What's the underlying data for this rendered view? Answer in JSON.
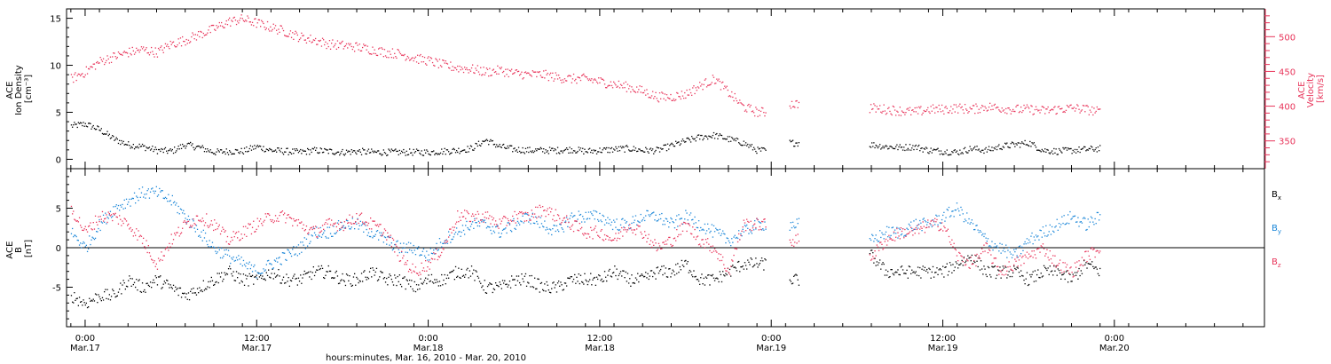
{
  "colors": {
    "axis": "#000000",
    "density": "#000000",
    "velocity": "#e8345a",
    "bx": "#000000",
    "by": "#1a86d8",
    "bz": "#e8345a"
  },
  "x_axis": {
    "title": "hours:minutes, Mar. 16, 2010 - Mar. 20, 2010",
    "range_hours": [
      -1.3,
      82.5
    ],
    "ticks": [
      {
        "hour": 0,
        "time": "0:00",
        "date": "Mar.17"
      },
      {
        "hour": 12,
        "time": "12:00",
        "date": "Mar.17"
      },
      {
        "hour": 24,
        "time": "0:00",
        "date": "Mar.18"
      },
      {
        "hour": 36,
        "time": "12:00",
        "date": "Mar.18"
      },
      {
        "hour": 48,
        "time": "0:00",
        "date": "Mar.19"
      },
      {
        "hour": 60,
        "time": "12:00",
        "date": "Mar.19"
      },
      {
        "hour": 72,
        "time": "0:00",
        "date": "Mar.20"
      }
    ]
  },
  "chart_data": [
    {
      "type": "scatter",
      "panel": "top",
      "left_axis": {
        "label_lines": [
          "ACE",
          "Ion Density",
          "[cm⁻³]"
        ],
        "ylim": [
          -1,
          16
        ],
        "ticks": [
          0,
          5,
          10,
          15
        ]
      },
      "right_axis": {
        "label_lines": [
          "ACE",
          "Velocity",
          "[km/s]"
        ],
        "ylim": [
          310,
          540
        ],
        "ticks": [
          350,
          400,
          450,
          500
        ]
      },
      "data_gaps_hours": [
        [
          47.6,
          49.2
        ],
        [
          49.9,
          54.8
        ]
      ],
      "series": [
        {
          "axis": "left",
          "x": [
            -1,
            0,
            1,
            2,
            3,
            4,
            5,
            6,
            7,
            8,
            9,
            10,
            11,
            12,
            13,
            14,
            15,
            16,
            17,
            18,
            19,
            20,
            21,
            22,
            23,
            24,
            25,
            26,
            27,
            28,
            29,
            30,
            31,
            32,
            33,
            34,
            35,
            36,
            37,
            38,
            39,
            40,
            41,
            42,
            43,
            44,
            45,
            46,
            47,
            48,
            49,
            50,
            51,
            52,
            53,
            54,
            55,
            56,
            57,
            58,
            59,
            60,
            61,
            62,
            63,
            64,
            65,
            66,
            67,
            68,
            69,
            70,
            71
          ],
          "y": [
            3.6,
            3.8,
            3.2,
            2.2,
            1.6,
            1.4,
            1.0,
            0.9,
            1.6,
            1.3,
            0.8,
            0.9,
            0.9,
            1.4,
            1.0,
            0.9,
            0.8,
            1.0,
            0.9,
            0.8,
            0.9,
            0.8,
            0.8,
            0.8,
            0.8,
            0.8,
            0.9,
            1.0,
            1.2,
            2.1,
            1.4,
            1.1,
            1.0,
            1.0,
            1.0,
            1.1,
            0.9,
            1.0,
            1.1,
            1.2,
            1.0,
            1.0,
            1.5,
            2.0,
            2.4,
            2.6,
            2.2,
            1.8,
            1.0,
            null,
            1.8,
            null,
            null,
            null,
            null,
            null,
            1.6,
            1.4,
            1.3,
            1.4,
            1.0,
            0.9,
            0.8,
            1.2,
            1.0,
            1.4,
            1.6,
            1.8,
            1.0,
            0.9,
            1.0,
            1.1,
            1.2
          ]
        },
        {
          "axis": "right",
          "x": [
            -1,
            0,
            1,
            2,
            3,
            4,
            5,
            6,
            7,
            8,
            9,
            10,
            11,
            12,
            13,
            14,
            15,
            16,
            17,
            18,
            19,
            20,
            21,
            22,
            23,
            24,
            25,
            26,
            27,
            28,
            29,
            30,
            31,
            32,
            33,
            34,
            35,
            36,
            37,
            38,
            39,
            40,
            41,
            42,
            43,
            44,
            45,
            46,
            47,
            48,
            49,
            50,
            51,
            52,
            53,
            54,
            55,
            56,
            57,
            58,
            59,
            60,
            61,
            62,
            63,
            64,
            65,
            66,
            67,
            68,
            69,
            70,
            71
          ],
          "y": [
            440,
            450,
            465,
            472,
            478,
            482,
            478,
            490,
            496,
            504,
            512,
            522,
            526,
            520,
            514,
            508,
            500,
            496,
            490,
            488,
            486,
            482,
            478,
            476,
            470,
            466,
            460,
            456,
            454,
            450,
            452,
            448,
            446,
            446,
            442,
            440,
            440,
            436,
            432,
            428,
            422,
            414,
            414,
            418,
            430,
            440,
            420,
            400,
            392,
            null,
            404,
            null,
            null,
            null,
            null,
            null,
            398,
            396,
            394,
            392,
            396,
            396,
            398,
            396,
            400,
            398,
            396,
            396,
            394,
            396,
            398,
            396,
            392
          ]
        }
      ]
    },
    {
      "type": "scatter",
      "panel": "bottom",
      "left_axis": {
        "label_lines": [
          "ACE",
          "B",
          "[nT]"
        ],
        "ylim": [
          -10,
          10
        ],
        "ticks": [
          -5,
          0,
          5
        ]
      },
      "zero_line": 0,
      "data_gaps_hours": [
        [
          47.6,
          49.2
        ],
        [
          49.9,
          54.8
        ]
      ],
      "series": [
        {
          "name": "Bx",
          "x": [
            -1,
            0,
            1,
            2,
            3,
            4,
            5,
            6,
            7,
            8,
            9,
            10,
            11,
            12,
            13,
            14,
            15,
            16,
            17,
            18,
            19,
            20,
            21,
            22,
            23,
            24,
            25,
            26,
            27,
            28,
            29,
            30,
            31,
            32,
            33,
            34,
            35,
            36,
            37,
            38,
            39,
            40,
            41,
            42,
            43,
            44,
            45,
            46,
            47,
            48,
            49,
            50,
            51,
            52,
            53,
            54,
            55,
            56,
            57,
            58,
            59,
            60,
            61,
            62,
            63,
            64,
            65,
            66,
            67,
            68,
            69,
            70,
            71
          ],
          "y": [
            -6,
            -7,
            -6,
            -6,
            -4,
            -5,
            -4,
            -5,
            -6,
            -5,
            -4,
            -3,
            -4,
            -4,
            -3,
            -4,
            -4,
            -3,
            -3,
            -4,
            -4,
            -3,
            -4,
            -4,
            -5,
            -4,
            -4,
            -3,
            -3,
            -5,
            -5,
            -4,
            -4,
            -5,
            -5,
            -4,
            -4,
            -4,
            -3,
            -4,
            -4,
            -3,
            -3,
            -2,
            -4,
            -4,
            -3,
            -2,
            -2,
            null,
            -4,
            null,
            null,
            null,
            null,
            null,
            -1,
            -3,
            -3,
            -3,
            -3,
            -3,
            -2,
            -1,
            -3,
            -3,
            -3,
            -4,
            -3,
            -3,
            -4,
            -2,
            -3
          ]
        },
        {
          "name": "By",
          "x": [
            -1,
            0,
            1,
            2,
            3,
            4,
            5,
            6,
            7,
            8,
            9,
            10,
            11,
            12,
            13,
            14,
            15,
            16,
            17,
            18,
            19,
            20,
            21,
            22,
            23,
            24,
            25,
            26,
            27,
            28,
            29,
            30,
            31,
            32,
            33,
            34,
            35,
            36,
            37,
            38,
            39,
            40,
            41,
            42,
            43,
            44,
            45,
            46,
            47,
            48,
            49,
            50,
            51,
            52,
            53,
            54,
            55,
            56,
            57,
            58,
            59,
            60,
            61,
            62,
            63,
            64,
            65,
            66,
            67,
            68,
            69,
            70,
            71
          ],
          "y": [
            2,
            0,
            3,
            5,
            6,
            7,
            7,
            6,
            4,
            2,
            0,
            -1,
            -2,
            -3,
            -2,
            -1,
            0,
            2,
            2,
            3,
            3,
            2,
            1,
            0,
            0,
            -1,
            1,
            2,
            3,
            3,
            2,
            3,
            4,
            3,
            2,
            4,
            4,
            4,
            3,
            3,
            4,
            4,
            3,
            4,
            3,
            2,
            1,
            2,
            3,
            null,
            3,
            null,
            null,
            null,
            null,
            null,
            1,
            2,
            2,
            3,
            3,
            4,
            5,
            3,
            1,
            0,
            -1,
            1,
            2,
            3,
            4,
            3,
            4
          ]
        },
        {
          "name": "Bz",
          "x": [
            -1,
            0,
            1,
            2,
            3,
            4,
            5,
            6,
            7,
            8,
            9,
            10,
            11,
            12,
            13,
            14,
            15,
            16,
            17,
            18,
            19,
            20,
            21,
            22,
            23,
            24,
            25,
            26,
            27,
            28,
            29,
            30,
            31,
            32,
            33,
            34,
            35,
            36,
            37,
            38,
            39,
            40,
            41,
            42,
            43,
            44,
            45,
            46,
            47,
            48,
            49,
            50,
            51,
            52,
            53,
            54,
            55,
            56,
            57,
            58,
            59,
            60,
            61,
            62,
            63,
            64,
            65,
            66,
            67,
            68,
            69,
            70,
            71
          ],
          "y": [
            5,
            2,
            4,
            4,
            3,
            1,
            -2,
            1,
            3,
            4,
            3,
            1,
            2,
            3,
            4,
            4,
            3,
            2,
            3,
            3,
            4,
            3,
            2,
            -1,
            -3,
            -2,
            0,
            4,
            4,
            4,
            3,
            4,
            4,
            5,
            4,
            3,
            2,
            2,
            1,
            3,
            2,
            0,
            1,
            3,
            1,
            0,
            -3,
            3,
            3,
            null,
            1,
            null,
            null,
            null,
            null,
            null,
            -1,
            1,
            2,
            2,
            3,
            3,
            -1,
            -2,
            0,
            -3,
            -2,
            -1,
            0,
            -2,
            -3,
            -1,
            0
          ]
        }
      ],
      "legend": [
        {
          "base": "B",
          "sub": "x",
          "series": "Bx"
        },
        {
          "base": "B",
          "sub": "y",
          "series": "By"
        },
        {
          "base": "B",
          "sub": "z",
          "series": "Bz"
        }
      ]
    }
  ]
}
